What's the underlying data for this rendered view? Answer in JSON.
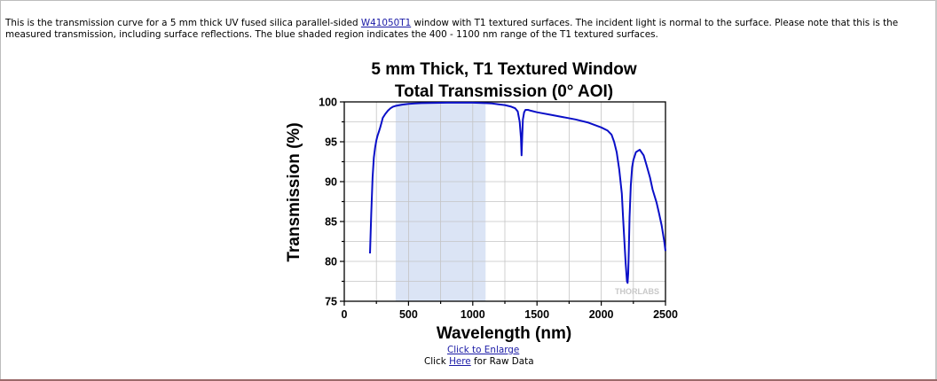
{
  "description": {
    "before_link": "This is the transmission curve for a 5 mm thick UV fused silica parallel-sided ",
    "link_text": "W41050T1",
    "after_link": " window with T1 textured surfaces. The incident light is normal to the surface. Please note that this is the measured transmission, including surface reflections. The blue shaded region indicates the 400 - 1100 nm range of the T1 textured surfaces."
  },
  "links": {
    "enlarge": "Click to Enlarge",
    "raw_prefix": "Click ",
    "raw_link": "Here",
    "raw_suffix": " for Raw Data"
  },
  "chart_data": {
    "type": "line",
    "title": "5 mm Thick, T1 Textured Window",
    "subtitle": "Total Transmission (0° AOI)",
    "xlabel": "Wavelength (nm)",
    "ylabel": "Transmission (%)",
    "xlim": [
      0,
      2500
    ],
    "ylim": [
      75,
      100
    ],
    "xticks": [
      0,
      500,
      1000,
      1500,
      2000,
      2500
    ],
    "yticks": [
      75,
      80,
      85,
      90,
      95,
      100
    ],
    "grid": true,
    "watermark": "THORLABS",
    "shaded_region": {
      "x_start": 400,
      "x_end": 1100,
      "color": "#dbe4f5"
    },
    "line_color": "#0a0fc8",
    "series": [
      {
        "x": [
          200,
          210,
          220,
          230,
          240,
          250,
          260,
          270,
          280,
          290,
          300,
          320,
          340,
          360,
          380,
          400,
          450,
          500,
          550,
          600,
          700,
          800,
          900,
          1000,
          1100,
          1150,
          1200,
          1250,
          1300,
          1330,
          1350,
          1365,
          1375,
          1380,
          1385,
          1390,
          1400,
          1410,
          1430,
          1450,
          1500,
          1600,
          1700,
          1800,
          1900,
          2000,
          2050,
          2080,
          2100,
          2120,
          2140,
          2160,
          2170,
          2180,
          2190,
          2200,
          2205,
          2210,
          2215,
          2220,
          2230,
          2240,
          2250,
          2270,
          2300,
          2330,
          2350,
          2380,
          2400,
          2430,
          2450,
          2470,
          2490,
          2500
        ],
        "y": [
          81,
          86,
          90.5,
          93,
          94.3,
          95.2,
          95.8,
          96.3,
          96.8,
          97.4,
          98,
          98.5,
          98.9,
          99.2,
          99.4,
          99.5,
          99.65,
          99.75,
          99.8,
          99.85,
          99.88,
          99.9,
          99.9,
          99.9,
          99.85,
          99.8,
          99.7,
          99.6,
          99.4,
          99.2,
          98.8,
          97.5,
          95.5,
          93.3,
          95.5,
          97.8,
          98.7,
          99.0,
          99.0,
          98.9,
          98.7,
          98.4,
          98.1,
          97.8,
          97.4,
          96.8,
          96.4,
          95.9,
          95.0,
          93.7,
          91.5,
          88.5,
          85.5,
          82.5,
          79.8,
          77.5,
          77.3,
          78.5,
          81.5,
          85.5,
          89.5,
          91.8,
          92.7,
          93.7,
          94.0,
          93.3,
          92.2,
          90.5,
          89.0,
          87.4,
          86.0,
          84.5,
          82.5,
          81.3
        ]
      }
    ]
  }
}
